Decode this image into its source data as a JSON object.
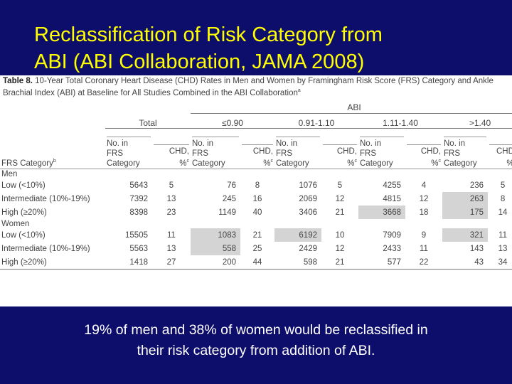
{
  "slide": {
    "title_line1": "Reclassification of Risk Category from",
    "title_line2": "ABI (ABI Collaboration, JAMA 2008)",
    "note_line1": "19% of men and 38% of women would be reclassified in",
    "note_line2": "their risk category from addition of ABI."
  },
  "table": {
    "caption_label": "Table 8.",
    "caption_line1": " 10-Year Total Coronary Heart Disease (CHD) Rates in Men and Women by Framingham Risk Score (FRS) Category and Ankle",
    "caption_line2": "Brachial Index (ABI) at Baseline for All Studies Combined in the ABI Collaboration",
    "caption_sup": "a",
    "abi_label": "ABI",
    "groups": [
      "Total",
      "≤0.90",
      "0.91-1.10",
      "1.11-1.40",
      ">1.40"
    ],
    "col_no_l1": "No. in",
    "col_no_l2": "FRS",
    "col_no_l3": "Category",
    "col_chd_l1": "CHD,",
    "col_chd_l2": "%",
    "col_chd_sup": "c",
    "frs_category_label": "FRS Category",
    "frs_category_sup": "b",
    "sections": [
      {
        "label": "Men",
        "rows": [
          {
            "label": "Low (<10%)",
            "cells": [
              "5643",
              "5",
              "76",
              "8",
              "1076",
              "5",
              "4255",
              "4",
              "236",
              "5"
            ]
          },
          {
            "label": "Intermediate (10%-19%)",
            "cells": [
              "7392",
              "13",
              "245",
              "16",
              "2069",
              "12",
              "4815",
              "12",
              "263",
              "8"
            ]
          },
          {
            "label": "High (≥20%)",
            "cells": [
              "8398",
              "23",
              "1149",
              "40",
              "3406",
              "21",
              "3668",
              "18",
              "175",
              "14"
            ]
          }
        ]
      },
      {
        "label": "Women",
        "rows": [
          {
            "label": "Low (<10%)",
            "cells": [
              "15505",
              "11",
              "1083",
              "21",
              "6192",
              "10",
              "7909",
              "9",
              "321",
              "11"
            ]
          },
          {
            "label": "Intermediate (10%-19%)",
            "cells": [
              "5563",
              "13",
              "558",
              "25",
              "2429",
              "12",
              "2433",
              "11",
              "143",
              "13"
            ]
          },
          {
            "label": "High (≥20%)",
            "cells": [
              "1418",
              "27",
              "200",
              "44",
              "598",
              "21",
              "577",
              "22",
              "43",
              "34"
            ]
          }
        ]
      }
    ]
  }
}
